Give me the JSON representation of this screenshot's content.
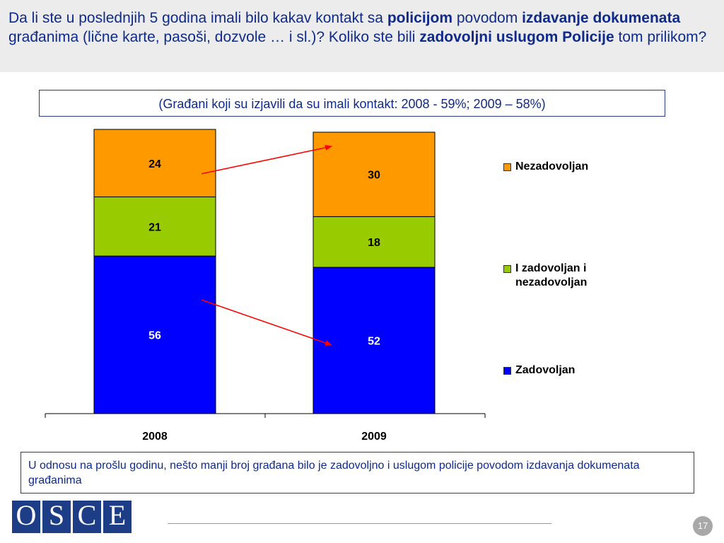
{
  "header": {
    "title_parts": [
      {
        "t": "Da li ste u poslednjih 5 godina  imali bilo kakav kontakt sa ",
        "b": false
      },
      {
        "t": "policijom",
        "b": true
      },
      {
        "t": " povodom ",
        "b": false
      },
      {
        "t": "izdavanje dokumenata",
        "b": true
      },
      {
        "t": " građanima (lične karte, pasoši, dozvole … i sl.)? Koliko ste bili ",
        "b": false
      },
      {
        "t": "zadovoljni uslugom Policije",
        "b": true
      },
      {
        "t": " tom prilikom?",
        "b": false
      }
    ]
  },
  "subtitle": "(Građani koji su izjavili da su imali kontakt: 2008 - 59%; 2009 – 58%)",
  "chart_data": {
    "type": "bar",
    "stacked": true,
    "categories": [
      "2008",
      "2009"
    ],
    "series": [
      {
        "name": "Zadovoljan",
        "values": [
          56,
          52
        ],
        "color": "#0000ff"
      },
      {
        "name": "I zadovoljan i nezadovoljan",
        "values": [
          21,
          18
        ],
        "color": "#99cc00"
      },
      {
        "name": "Nezadovoljan",
        "values": [
          24,
          30
        ],
        "color": "#ff9900"
      }
    ],
    "legend_order": [
      "Nezadovoljan",
      "I zadovoljan i nezadovoljan",
      "Zadovoljan"
    ],
    "legend_position": "right",
    "label_colors": {
      "Zadovoljan": "#ffffff",
      "I zadovoljan i nezadovoljan": "#000000",
      "Nezadovoljan": "#000000"
    },
    "arrow_color": "#ff0000",
    "arrows": [
      {
        "series": "Nezadovoljan",
        "from": "2008",
        "to": "2009"
      },
      {
        "series": "Zadovoljan",
        "from": "2008",
        "to": "2009"
      }
    ],
    "ylim": [
      0,
      100
    ]
  },
  "note": "U odnosu na prošlu godinu, nešto manji broj građana bilo je zadovoljno i uslugom policije povodom izdavanja dokumenata građanima",
  "logo_letters": [
    "O",
    "S",
    "C",
    "E"
  ],
  "page_number": "17"
}
